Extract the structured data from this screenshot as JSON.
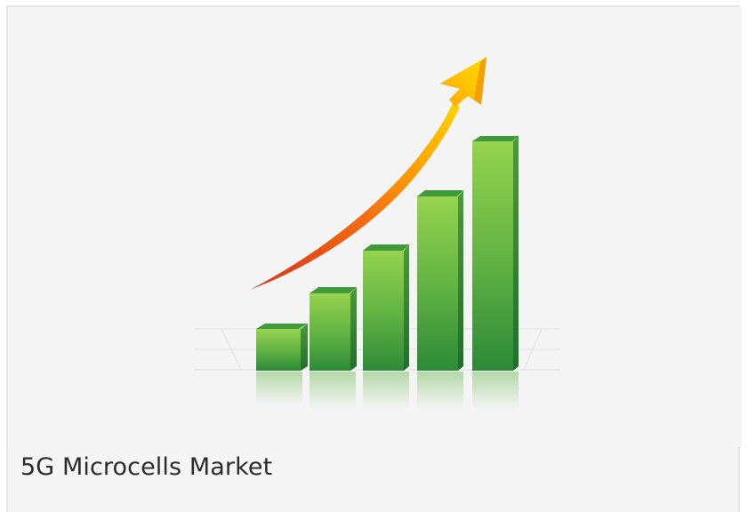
{
  "card": {
    "title": "5G Microcells Market",
    "image_icon": "growth-bar-chart-with-rising-arrow-illustration"
  },
  "colors": {
    "card_background": "#f5f5f5",
    "card_border": "#e6e6e6",
    "title_text": "#2b2b2b",
    "bar_green_light": "#8fcf4a",
    "bar_green_dark": "#2e8f3a",
    "arrow_yellow": "#ffd400",
    "arrow_orange": "#f46a12",
    "arrow_red": "#d8301a"
  }
}
